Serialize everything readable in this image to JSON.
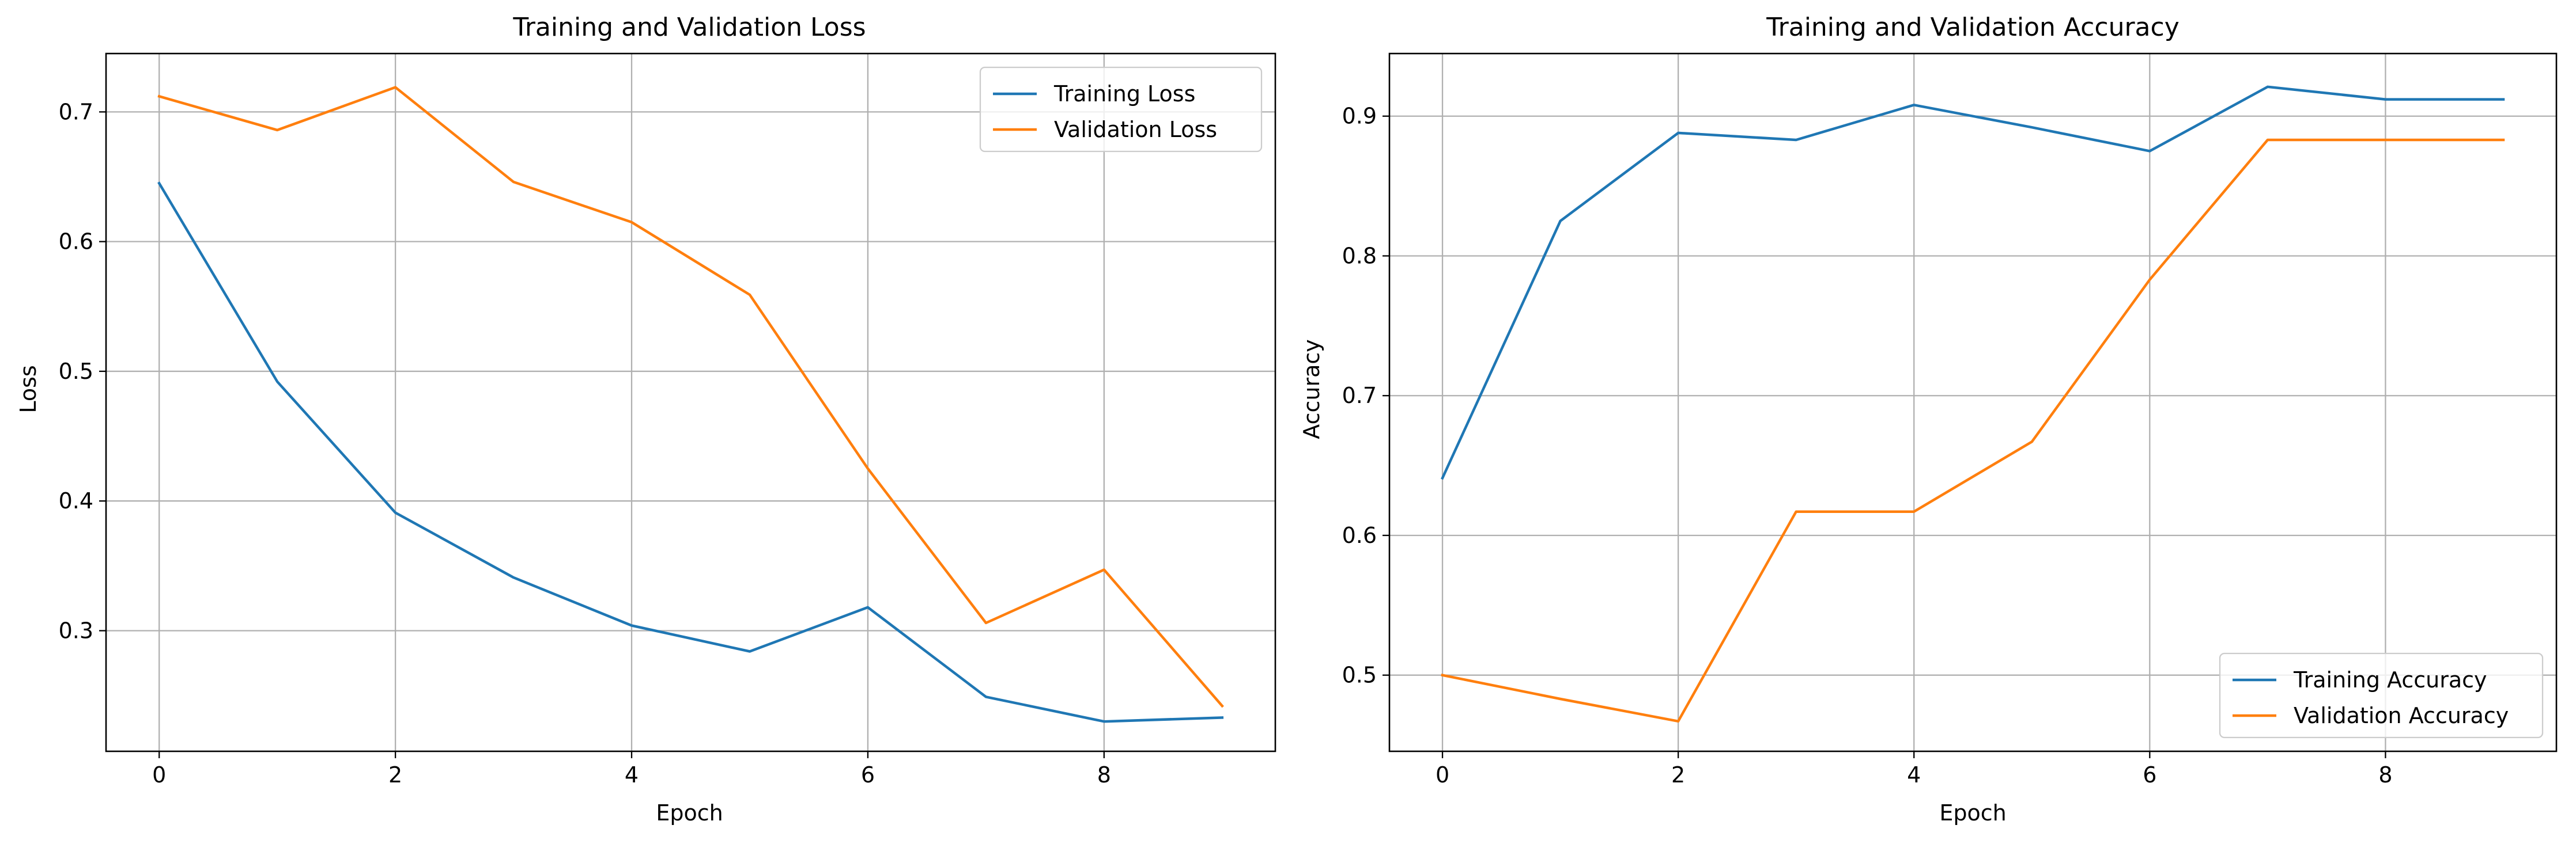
{
  "colors": {
    "training": "#1f77b4",
    "validation": "#ff7f0e",
    "grid": "#b0b0b0",
    "axes": "#000000"
  },
  "chart_data": [
    {
      "type": "line",
      "title": "Training and Validation Loss",
      "xlabel": "Epoch",
      "ylabel": "Loss",
      "xlim": [
        -0.45,
        9.45
      ],
      "ylim": [
        0.207,
        0.745
      ],
      "xticks": [
        0,
        2,
        4,
        6,
        8
      ],
      "xtick_labels": [
        "0",
        "2",
        "4",
        "6",
        "8"
      ],
      "yticks": [
        0.3,
        0.4,
        0.5,
        0.6,
        0.7
      ],
      "ytick_labels": [
        "0.3",
        "0.4",
        "0.5",
        "0.6",
        "0.7"
      ],
      "grid": true,
      "legend_position": "upper right",
      "x": [
        0,
        1,
        2,
        3,
        4,
        5,
        6,
        7,
        8,
        9
      ],
      "series": [
        {
          "name": "Training Loss",
          "color": "training",
          "values": [
            0.645,
            0.492,
            0.391,
            0.341,
            0.304,
            0.284,
            0.318,
            0.249,
            0.23,
            0.233
          ]
        },
        {
          "name": "Validation Loss",
          "color": "validation",
          "values": [
            0.712,
            0.686,
            0.719,
            0.646,
            0.615,
            0.559,
            0.425,
            0.306,
            0.347,
            0.242
          ]
        }
      ]
    },
    {
      "type": "line",
      "title": "Training and Validation Accuracy",
      "xlabel": "Epoch",
      "ylabel": "Accuracy",
      "xlim": [
        -0.45,
        9.45
      ],
      "ylim": [
        0.4455,
        0.9448
      ],
      "xticks": [
        0,
        2,
        4,
        6,
        8
      ],
      "xtick_labels": [
        "0",
        "2",
        "4",
        "6",
        "8"
      ],
      "yticks": [
        0.5,
        0.6,
        0.7,
        0.8,
        0.9
      ],
      "ytick_labels": [
        "0.5",
        "0.6",
        "0.7",
        "0.8",
        "0.9"
      ],
      "grid": true,
      "legend_position": "lower right",
      "x": [
        0,
        1,
        2,
        3,
        4,
        5,
        6,
        7,
        8,
        9
      ],
      "series": [
        {
          "name": "Training Accuracy",
          "color": "training",
          "values": [
            0.641,
            0.825,
            0.888,
            0.883,
            0.908,
            0.892,
            0.875,
            0.921,
            0.912,
            0.912
          ]
        },
        {
          "name": "Validation Accuracy",
          "color": "validation",
          "values": [
            0.5,
            0.483,
            0.467,
            0.617,
            0.617,
            0.667,
            0.783,
            0.883,
            0.883,
            0.883
          ]
        }
      ]
    }
  ]
}
